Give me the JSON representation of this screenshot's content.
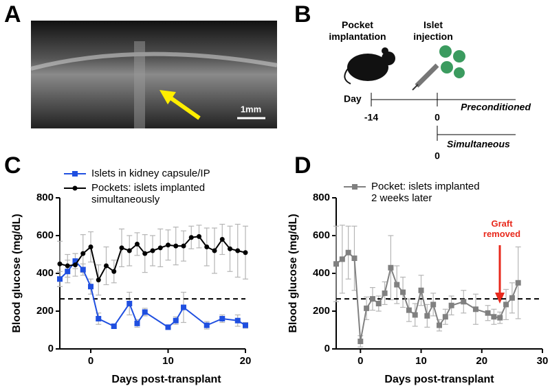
{
  "panel_labels": [
    "A",
    "B",
    "C",
    "D"
  ],
  "panel_a": {
    "scale_label": "1mm"
  },
  "panel_b": {
    "pocket_label": "Pocket implantation",
    "islet_label": "Islet injection",
    "day_label": "Day",
    "day_start": "-14",
    "day_zero": "0",
    "preconditioned": "Preconditioned",
    "simultaneous_zero": "0",
    "simultaneous": "Simultaneous"
  },
  "chart_data": [
    {
      "type": "line",
      "xlabel": "Days post-transplant",
      "ylabel": "Blood glucose (mg/dL)",
      "xlim": [
        -4,
        20
      ],
      "xticks": [
        0,
        10,
        20
      ],
      "ylim": [
        0,
        800
      ],
      "yticks": [
        0,
        200,
        400,
        600,
        800
      ],
      "reference_line": 265,
      "series": [
        {
          "name": "Islets in kidney capsule/IP",
          "color": "#1f4fe0",
          "marker": "square",
          "x": [
            -4,
            -3,
            -2,
            -1,
            0,
            1,
            3,
            5,
            6,
            7,
            10,
            11,
            12,
            15,
            17,
            19,
            20
          ],
          "values": [
            370,
            410,
            465,
            420,
            330,
            160,
            120,
            240,
            135,
            195,
            115,
            150,
            220,
            125,
            160,
            150,
            125
          ],
          "errors": [
            40,
            60,
            40,
            30,
            40,
            30,
            10,
            60,
            20,
            20,
            10,
            20,
            80,
            20,
            20,
            30,
            15
          ]
        },
        {
          "name": "Pockets: islets implanted simultaneously",
          "color": "#000000",
          "marker": "circle",
          "x": [
            -4,
            -3,
            -2,
            -1,
            0,
            1,
            2,
            3,
            4,
            5,
            6,
            7,
            8,
            9,
            10,
            11,
            12,
            13,
            14,
            15,
            16,
            17,
            18,
            19,
            20
          ],
          "values": [
            450,
            440,
            445,
            505,
            540,
            365,
            440,
            410,
            535,
            520,
            555,
            505,
            520,
            535,
            550,
            545,
            545,
            590,
            595,
            540,
            520,
            580,
            530,
            520,
            510
          ],
          "errors": [
            120,
            60,
            60,
            100,
            80,
            80,
            100,
            60,
            100,
            80,
            60,
            100,
            80,
            100,
            80,
            100,
            80,
            60,
            60,
            100,
            120,
            80,
            120,
            140,
            140
          ]
        }
      ]
    },
    {
      "type": "line",
      "xlabel": "Days post-transplant",
      "ylabel": "Blood glucose (mg/dL)",
      "xlim": [
        -4,
        30
      ],
      "xticks": [
        0,
        10,
        20,
        30
      ],
      "ylim": [
        0,
        800
      ],
      "yticks": [
        0,
        200,
        400,
        600,
        800
      ],
      "reference_line": 265,
      "annotation": "Graft removed",
      "series": [
        {
          "name": "Pocket: islets implanted 2 weeks later",
          "color": "#808080",
          "marker": "square",
          "x": [
            -4,
            -3,
            -2,
            -1,
            0,
            1,
            2,
            3,
            4,
            5,
            6,
            7,
            8,
            9,
            10,
            11,
            12,
            13,
            14,
            15,
            17,
            19,
            21,
            22,
            23,
            24,
            25,
            26
          ],
          "values": [
            450,
            475,
            510,
            480,
            40,
            215,
            265,
            240,
            295,
            430,
            340,
            300,
            205,
            180,
            310,
            175,
            235,
            125,
            170,
            230,
            250,
            210,
            190,
            170,
            165,
            235,
            270,
            350
          ],
          "errors": [
            200,
            180,
            140,
            170,
            30,
            60,
            60,
            40,
            60,
            170,
            100,
            80,
            60,
            60,
            80,
            60,
            60,
            30,
            40,
            50,
            60,
            80,
            40,
            40,
            30,
            80,
            80,
            190
          ]
        }
      ]
    }
  ]
}
